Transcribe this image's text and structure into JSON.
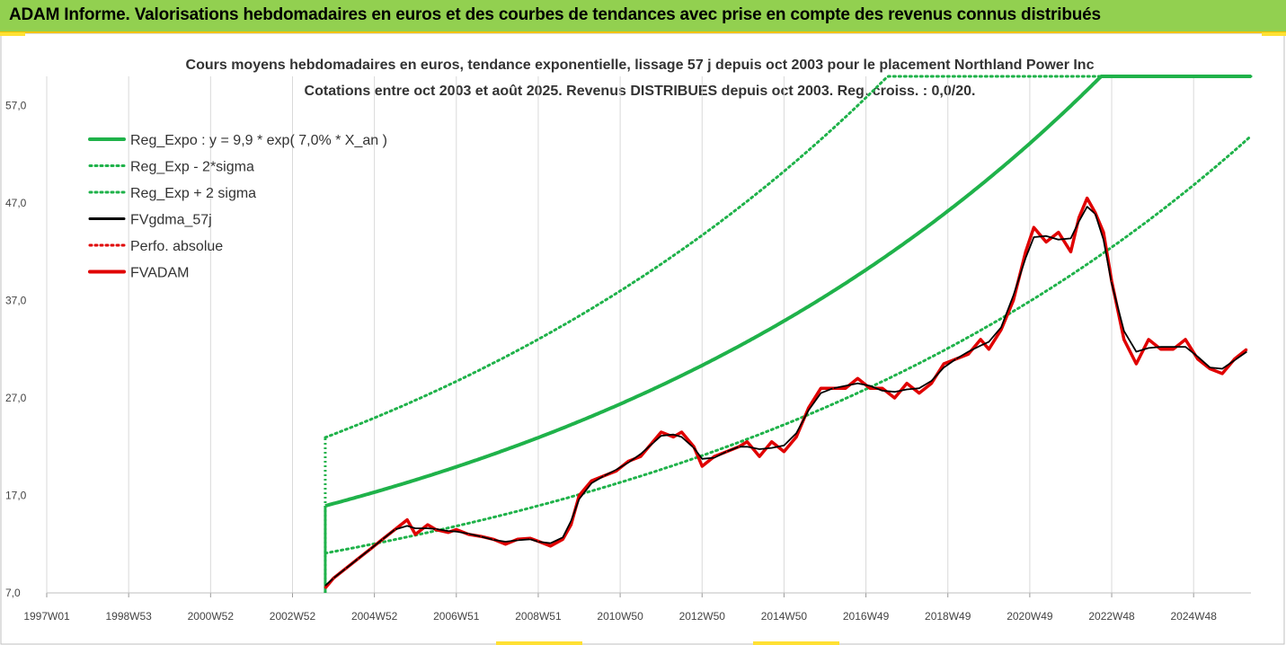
{
  "banner": {
    "title": "ADAM Informe. Valorisations hebdomadaires en euros et des courbes de tendances avec prise en compte des revenus connus distribués",
    "bg_color": "#92d050"
  },
  "chart_data": {
    "type": "line",
    "title_line1": "Cours moyens hebdomadaires en euros, tendance exponentielle, lissage 57 j depuis oct 2003 pour le placement Northland Power Inc",
    "title_line2": "Cotations entre oct 2003 et août 2025. Revenus DISTRIBUES depuis oct 2003. Reg. croiss. : 0,0/20.",
    "x_tick_labels": [
      "1997W01",
      "1998W53",
      "2000W52",
      "2002W52",
      "2004W52",
      "2006W51",
      "2008W51",
      "2010W50",
      "2012W50",
      "2014W50",
      "2016W49",
      "2018W49",
      "2020W49",
      "2022W48",
      "2024W48"
    ],
    "x_ticks_years": [
      1997.0,
      1999.0,
      2001.0,
      2003.0,
      2005.0,
      2007.0,
      2009.0,
      2011.0,
      2013.0,
      2015.0,
      2017.0,
      2019.0,
      2021.0,
      2023.0,
      2025.0
    ],
    "xlim_years": [
      1997.0,
      2026.4
    ],
    "y_tick_labels": [
      "7,0",
      "17,0",
      "27,0",
      "37,0",
      "47,0",
      "57,0"
    ],
    "y_ticks": [
      7,
      17,
      27,
      37,
      47,
      57
    ],
    "ylim": [
      7,
      60
    ],
    "grid": "vertical",
    "legend_placement": "top-left",
    "regression": {
      "a": 9.9,
      "rate": 0.07,
      "start_year": 2003.8,
      "end_year": 2026.4,
      "sigma_factor_low": 0.695,
      "sigma_factor_high": 1.44
    },
    "series": [
      {
        "name": "Reg_Expo : y = 9,9 * exp( 7,0% *  X_an )",
        "color": "#1fb24a",
        "style": "solid-thick"
      },
      {
        "name": "Reg_Exp - 2*sigma",
        "color": "#1fb24a",
        "style": "dotted"
      },
      {
        "name": "Reg_Exp + 2 sigma",
        "color": "#1fb24a",
        "style": "dotted"
      },
      {
        "name": "FVgdma_57j",
        "color": "#000000",
        "style": "solid"
      },
      {
        "name": "Perfo. absolue",
        "color": "#e00000",
        "style": "dotted"
      },
      {
        "name": "FVADAM",
        "color": "#e00000",
        "style": "solid-thick"
      }
    ],
    "fvadam": {
      "x": [
        2003.8,
        2004.0,
        2004.3,
        2004.6,
        2004.9,
        2005.2,
        2005.5,
        2005.8,
        2006.0,
        2006.3,
        2006.5,
        2006.8,
        2007.0,
        2007.3,
        2007.6,
        2007.9,
        2008.2,
        2008.5,
        2008.8,
        2009.0,
        2009.3,
        2009.6,
        2009.8,
        2010.0,
        2010.3,
        2010.6,
        2010.9,
        2011.2,
        2011.5,
        2011.8,
        2012.0,
        2012.3,
        2012.5,
        2012.8,
        2013.0,
        2013.3,
        2013.6,
        2013.9,
        2014.1,
        2014.4,
        2014.7,
        2015.0,
        2015.3,
        2015.6,
        2015.9,
        2016.2,
        2016.5,
        2016.8,
        2017.1,
        2017.4,
        2017.7,
        2018.0,
        2018.3,
        2018.6,
        2018.9,
        2019.2,
        2019.5,
        2019.8,
        2020.0,
        2020.3,
        2020.6,
        2020.9,
        2021.1,
        2021.4,
        2021.7,
        2022.0,
        2022.2,
        2022.4,
        2022.6,
        2022.8,
        2023.0,
        2023.3,
        2023.6,
        2023.9,
        2024.2,
        2024.5,
        2024.8,
        2025.1,
        2025.4,
        2025.7,
        2026.0,
        2026.3
      ],
      "y": [
        7.5,
        8.5,
        9.5,
        10.5,
        11.5,
        12.5,
        13.5,
        14.5,
        13.0,
        14.0,
        13.5,
        13.2,
        13.5,
        13.0,
        12.8,
        12.5,
        12.0,
        12.5,
        12.6,
        12.3,
        11.8,
        12.5,
        14.0,
        17.0,
        18.5,
        19.0,
        19.5,
        20.5,
        21.0,
        22.5,
        23.5,
        23.0,
        23.5,
        22.0,
        20.0,
        21.0,
        21.5,
        22.0,
        22.5,
        21.0,
        22.5,
        21.5,
        23.0,
        26.0,
        28.0,
        28.0,
        28.0,
        29.0,
        28.0,
        28.0,
        27.0,
        28.5,
        27.5,
        28.5,
        30.5,
        31.0,
        31.5,
        33.0,
        32.0,
        34.0,
        37.0,
        42.0,
        44.5,
        43.0,
        44.0,
        42.0,
        45.5,
        47.5,
        46.0,
        44.0,
        39.0,
        33.0,
        30.5,
        33.0,
        32.0,
        32.0,
        33.0,
        31.0,
        30.0,
        29.5,
        31.0,
        32.0
      ]
    }
  }
}
